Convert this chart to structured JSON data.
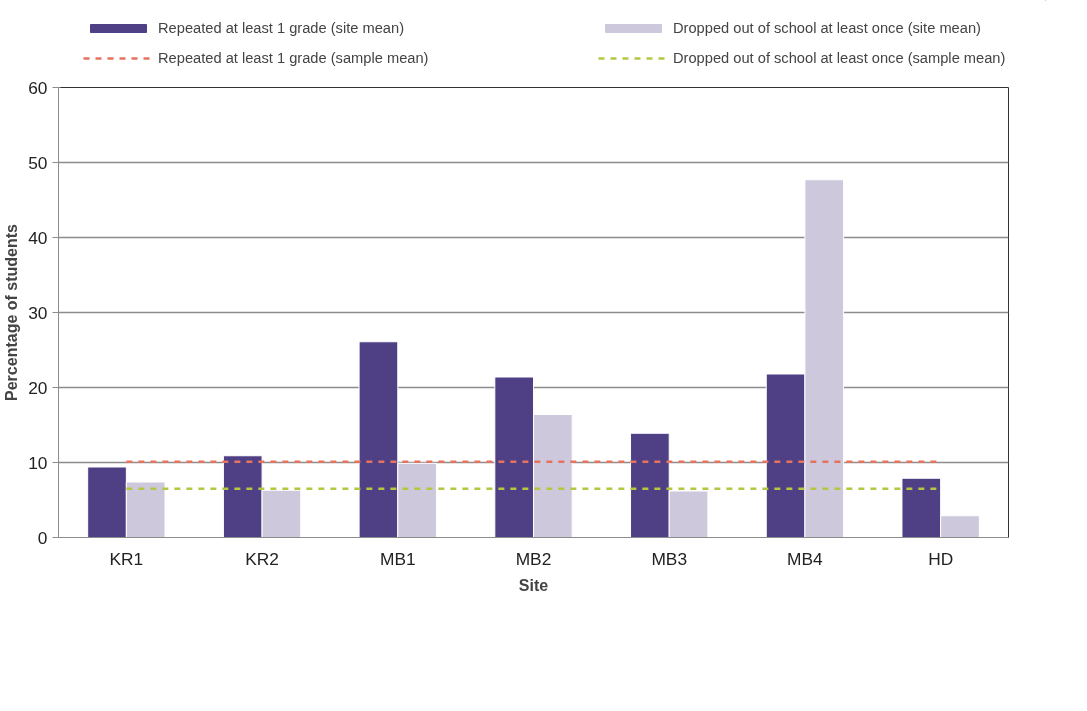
{
  "chart_data": {
    "type": "bar",
    "xlabel": "Site",
    "ylabel": "Percentage of students",
    "categories": [
      "KR1",
      "KR2",
      "MB1",
      "MB2",
      "MB3",
      "MB4",
      "HD"
    ],
    "series": [
      {
        "name": "Repeated at least 1 grade (site mean)",
        "color": "#4f3f85",
        "values": [
          9.4,
          10.9,
          26.1,
          21.4,
          13.9,
          21.8,
          7.9
        ]
      },
      {
        "name": "Dropped out of school at least once (site mean)",
        "color": "#cdc8dc",
        "values": [
          7.4,
          6.3,
          9.9,
          16.4,
          6.2,
          47.7,
          2.9
        ]
      }
    ],
    "ref_lines": [
      {
        "axis": "y",
        "value": 10.1,
        "label": "Repeated at least 1 grade (sample mean)",
        "color": "#e5735f",
        "line_style": "dashed"
      },
      {
        "axis": "y",
        "value": 6.5,
        "label": "Dropped out of school at least once (sample mean)",
        "color": "#b5c642",
        "line_style": "dashed"
      }
    ],
    "ylim": [
      0,
      60
    ],
    "yticks": [
      0,
      10,
      20,
      30,
      40,
      50,
      60
    ],
    "grid": "y",
    "legend": "top"
  }
}
